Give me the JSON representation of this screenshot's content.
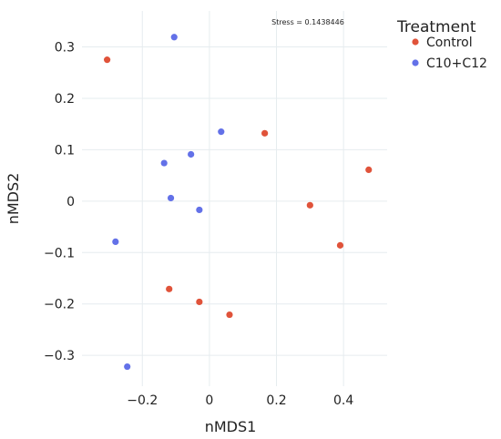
{
  "chart_data": {
    "type": "scatter",
    "xlabel": "nMDS1",
    "ylabel": "nMDS2",
    "xlim": [
      -0.38,
      0.53
    ],
    "ylim": [
      -0.36,
      0.37
    ],
    "x_ticks": [
      -0.2,
      0,
      0.2,
      0.4
    ],
    "x_tick_labels": [
      "−0.2",
      "0",
      "0.2",
      "0.4"
    ],
    "y_ticks": [
      -0.3,
      -0.2,
      -0.1,
      0,
      0.1,
      0.2,
      0.3
    ],
    "y_tick_labels": [
      "−0.3",
      "−0.2",
      "−0.1",
      "0",
      "0.1",
      "0.2",
      "0.3"
    ],
    "grid": true,
    "legend": {
      "title": "Treatment",
      "position": "right"
    },
    "annotation": "Stress = 0.1438446",
    "series": [
      {
        "name": "Control",
        "color": "#e0533a",
        "x": [
          -0.305,
          0.165,
          0.475,
          0.3,
          0.39,
          -0.12,
          -0.03,
          0.06
        ],
        "y": [
          0.275,
          0.132,
          0.061,
          -0.008,
          -0.086,
          -0.171,
          -0.196,
          -0.221
        ]
      },
      {
        "name": "C10+C12",
        "color": "#6371e8",
        "x": [
          -0.105,
          0.035,
          -0.055,
          -0.135,
          -0.115,
          -0.03,
          -0.28,
          -0.245
        ],
        "y": [
          0.319,
          0.135,
          0.091,
          0.074,
          0.006,
          -0.017,
          -0.079,
          -0.322
        ]
      }
    ]
  }
}
